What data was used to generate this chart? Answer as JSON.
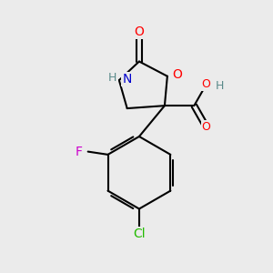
{
  "background_color": "#ebebeb",
  "bond_color": "#000000",
  "bond_width": 1.5,
  "atom_colors": {
    "O": "#ff0000",
    "N": "#0000cd",
    "F": "#cc00cc",
    "Cl": "#22bb00",
    "H_gray": "#5a8a8a",
    "C": "#000000"
  },
  "figsize": [
    3.0,
    3.0
  ],
  "dpi": 100
}
